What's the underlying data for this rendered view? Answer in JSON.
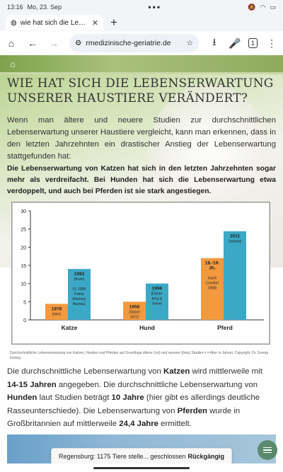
{
  "status_bar": {
    "time": "13:16",
    "date": "Mo, 23. Sep",
    "dots": "•••"
  },
  "tab": {
    "title": "wie hat sich die Lebenserwa",
    "close": "✕",
    "new_tab": "+"
  },
  "toolbar": {
    "url": "rmedizinische-geriatrie.de",
    "tab_count": "1"
  },
  "article": {
    "title": "WIE HAT SICH DIE LEBENSERWARTUNG UNSERER HAUSTIERE VERÄNDERT?",
    "intro": "Wenn man ältere und neuere Studien zur durchschnittlichen Lebenserwartung unserer Haustiere vergleicht, kann man erkennen, dass in den letzten Jahrzehnten ein drastischer Anstieg der Lebenserwartung stattgefunden hat:",
    "intro_bold": "Die Lebenserwartung von Katzen hat sich in den letzten Jahrzehnten sogar mehr als verdreifacht. Bei Hunden hat sich die Lebenserwartung etwa verdoppelt, und auch bei Pferden ist sie stark angestiegen.",
    "caption": "Durchschnittliche Lebenserwartung von Katzen, Hunden und Pferden auf Grundlage älterer (rot) und neuerer (blau) Studien x = Alter in Jahren; Copyright: Dr. Svenja Irsweg",
    "body": {
      "p1": "Die durchschnittliche Lebenserwartung von ",
      "katzen": "Katzen",
      "p2": " wird mittlerweile mit ",
      "katzen_years": "14-15 Jahren",
      "p3": " angegeben. Die durchschnittliche Lebenserwartung von ",
      "hunden": "Hunden",
      "p4": " laut Studien beträgt ",
      "hunden_years": "10 Jahre",
      "p5": " (hier gibt es allerdings deutliche Rasseunterschiede). Die Lebenserwartung von ",
      "pferden": "Pferden",
      "p6": " wurde in Großbritannien auf mittlerweile ",
      "pferden_years": "24,4 Jahre",
      "p7": " ermittelt."
    }
  },
  "snackbar": {
    "message": "Regensburg: 1175 Tiere stelle... geschlossen",
    "action": "Rückgängig"
  },
  "colors": {
    "old": "#f39a3f",
    "new": "#3ba9c6",
    "header_green": "#8eab5c",
    "fab": "#5a8a6d"
  },
  "chart_data": {
    "type": "bar",
    "categories": [
      "Katze",
      "Hund",
      "Pferd"
    ],
    "series": [
      {
        "values": [
          4.4,
          5,
          17
        ],
        "labels": [
          [
            "1978",
            "(Isler)"
          ],
          [
            "1958",
            "(Stünzi",
            "1972)"
          ],
          [
            "18.-19.",
            "Jh.",
            "",
            "(nach",
            "Comfort",
            "1958)"
          ]
        ]
      },
      {
        "values": [
          14,
          10,
          24.4
        ],
        "labels": [
          [
            "1993",
            "(Bush)",
            "",
            "(3. 2008",
            "Feline",
            "Advisory",
            "Bureau)"
          ],
          [
            "1996",
            "(Eichel-",
            "berg &",
            "Seine)"
          ],
          [
            "2011",
            "(Ireland)"
          ]
        ]
      }
    ],
    "yticks": [
      "0",
      "5",
      "10",
      "15",
      "20",
      "25",
      "30"
    ],
    "ylim": [
      0,
      30
    ],
    "grid": false
  }
}
